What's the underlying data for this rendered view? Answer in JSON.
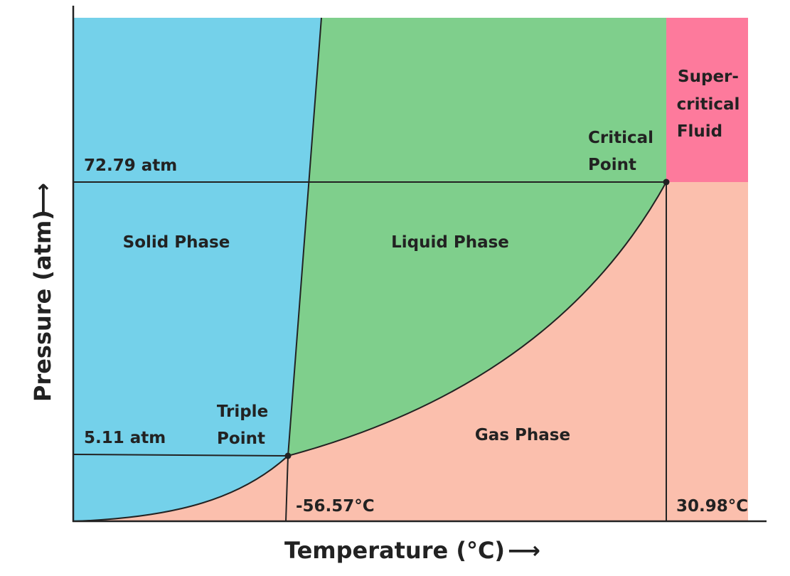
{
  "colors": {
    "solid": "#74d1ea",
    "liquid": "#7fcf8c",
    "gas": "#fbbfad",
    "supercritical": "#fd7a9c",
    "line": "#222222"
  },
  "axes": {
    "x_title": "Temperature (°C)",
    "y_title": "Pressure (atm)",
    "x_arrow": "⟶",
    "y_arrow": "⟶"
  },
  "regions": {
    "solid": "Solid Phase",
    "liquid": "Liquid Phase",
    "gas": "Gas Phase",
    "supercritical": [
      "Super-",
      "critical",
      "Fluid"
    ]
  },
  "points": {
    "triple": {
      "label": [
        "Triple",
        "Point"
      ],
      "temperature": "-56.57°C",
      "pressure": "5.11 atm"
    },
    "critical": {
      "label": [
        "Critical",
        "Point"
      ],
      "temperature": "30.98°C",
      "pressure": "72.79 atm"
    }
  }
}
